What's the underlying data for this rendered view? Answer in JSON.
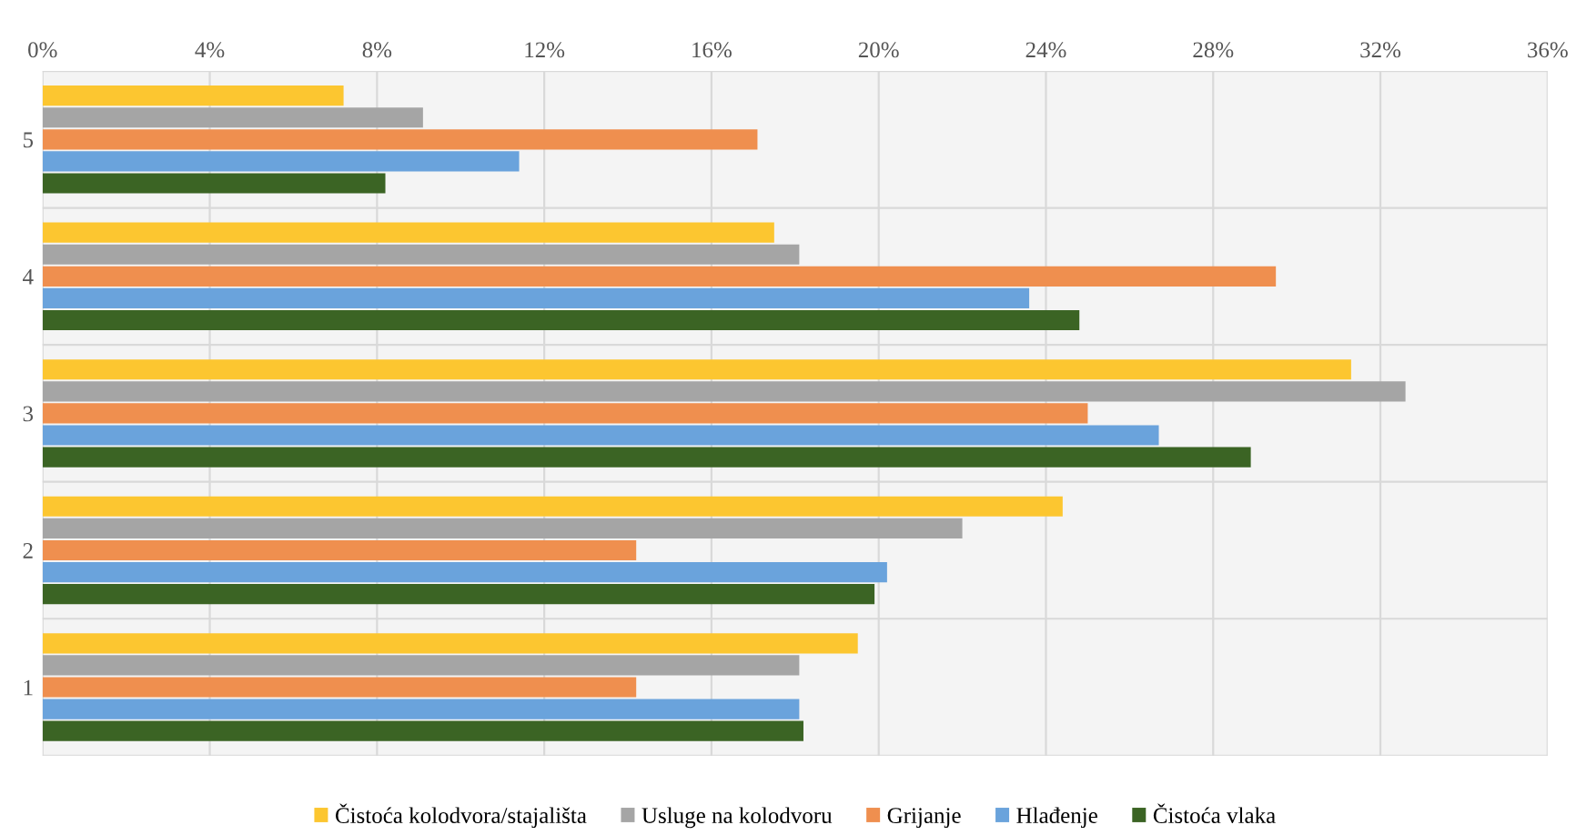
{
  "chart_data": {
    "type": "bar",
    "orientation": "horizontal",
    "categories": [
      "5",
      "4",
      "3",
      "2",
      "1"
    ],
    "series": [
      {
        "name": "Čistoća kolodvora/stajališta",
        "color": "#fcc630",
        "values": [
          7.2,
          17.5,
          31.3,
          24.4,
          19.5
        ]
      },
      {
        "name": "Usluge na kolodvoru",
        "color": "#a5a5a5",
        "values": [
          9.1,
          18.1,
          32.6,
          22.0,
          18.1
        ]
      },
      {
        "name": "Grijanje",
        "color": "#ef8f4f",
        "values": [
          17.1,
          29.5,
          25.0,
          14.2,
          14.2
        ]
      },
      {
        "name": "Hlađenje",
        "color": "#6aa3dc",
        "values": [
          11.4,
          23.6,
          26.7,
          20.2,
          18.1
        ]
      },
      {
        "name": "Čistoća vlaka",
        "color": "#3b6424",
        "values": [
          8.2,
          24.8,
          28.9,
          19.9,
          18.2
        ]
      }
    ],
    "xlim": [
      0,
      36
    ],
    "xticks": [
      {
        "value": 0,
        "label": "0%"
      },
      {
        "value": 4,
        "label": "4%"
      },
      {
        "value": 8,
        "label": "8%"
      },
      {
        "value": 12,
        "label": "12%"
      },
      {
        "value": 16,
        "label": "16%"
      },
      {
        "value": 20,
        "label": "20%"
      },
      {
        "value": 24,
        "label": "24%"
      },
      {
        "value": 28,
        "label": "28%"
      },
      {
        "value": 32,
        "label": "32%"
      },
      {
        "value": 36,
        "label": "36%"
      }
    ],
    "grid": "x",
    "legend": "bottom"
  }
}
